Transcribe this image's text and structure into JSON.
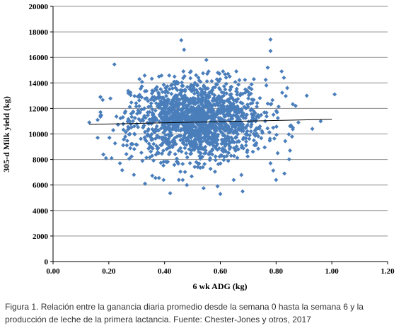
{
  "caption": {
    "line1": "Figura 1. Relación entre la ganancia diaria promedio desde la semana 0 hasta la semana 6 y la",
    "line2": "producción de leche de la primera lactancia. Fuente: Chester-Jones y otros, 2017"
  },
  "chart_data": {
    "type": "scatter",
    "title": "",
    "xlabel": "6 wk ADG (kg)",
    "ylabel": "305-d Milk yield (kg)",
    "xlim": [
      0,
      1.2
    ],
    "ylim": [
      0,
      20000
    ],
    "x_ticks": [
      "0.00",
      "0.20",
      "0.40",
      "0.60",
      "0.80",
      "1.00",
      "1.20"
    ],
    "y_ticks": [
      "0",
      "2000",
      "4000",
      "6000",
      "8000",
      "10000",
      "12000",
      "14000",
      "16000",
      "18000",
      "20000"
    ],
    "grid": "horizontal",
    "marker": "diamond",
    "marker_color": "#4a7ebb",
    "trendline": {
      "x": [
        0.13,
        1.0
      ],
      "y": [
        10750,
        11150
      ],
      "color": "#000000"
    },
    "cloud": {
      "x_mean": 0.52,
      "x_sd": 0.12,
      "y_mean": 11100,
      "y_sd": 1550,
      "n_points": 1600
    },
    "outliers": [
      {
        "x": 0.13,
        "y": 10900
      },
      {
        "x": 0.16,
        "y": 11100
      },
      {
        "x": 0.17,
        "y": 12900
      },
      {
        "x": 0.22,
        "y": 15450
      },
      {
        "x": 0.19,
        "y": 8100
      },
      {
        "x": 0.21,
        "y": 8100
      },
      {
        "x": 0.16,
        "y": 9700
      },
      {
        "x": 0.24,
        "y": 7700
      },
      {
        "x": 0.29,
        "y": 6800
      },
      {
        "x": 0.33,
        "y": 6100
      },
      {
        "x": 0.38,
        "y": 6550
      },
      {
        "x": 0.42,
        "y": 5350
      },
      {
        "x": 0.48,
        "y": 6000
      },
      {
        "x": 0.54,
        "y": 5750
      },
      {
        "x": 0.6,
        "y": 5300
      },
      {
        "x": 0.68,
        "y": 5500
      },
      {
        "x": 0.59,
        "y": 5900
      },
      {
        "x": 0.46,
        "y": 17350
      },
      {
        "x": 0.47,
        "y": 16600
      },
      {
        "x": 0.55,
        "y": 15800
      },
      {
        "x": 0.78,
        "y": 17400
      },
      {
        "x": 0.78,
        "y": 16500
      },
      {
        "x": 0.77,
        "y": 15200
      },
      {
        "x": 0.82,
        "y": 14900
      },
      {
        "x": 0.84,
        "y": 13600
      },
      {
        "x": 0.87,
        "y": 12200
      },
      {
        "x": 0.91,
        "y": 13000
      },
      {
        "x": 0.93,
        "y": 10400
      },
      {
        "x": 0.96,
        "y": 11000
      },
      {
        "x": 1.01,
        "y": 13100
      },
      {
        "x": 0.88,
        "y": 10900
      },
      {
        "x": 0.83,
        "y": 6900
      },
      {
        "x": 0.85,
        "y": 8700
      },
      {
        "x": 0.86,
        "y": 10500
      },
      {
        "x": 0.8,
        "y": 6400
      },
      {
        "x": 0.78,
        "y": 7700
      },
      {
        "x": 0.38,
        "y": 14500
      },
      {
        "x": 0.31,
        "y": 14300
      },
      {
        "x": 0.27,
        "y": 13200
      }
    ]
  }
}
